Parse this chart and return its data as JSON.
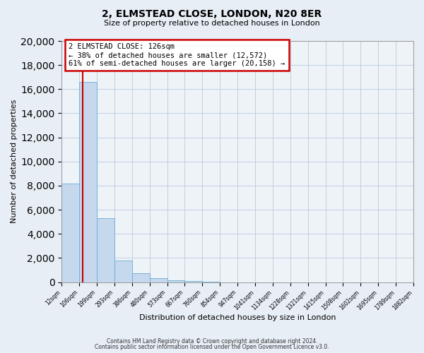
{
  "title": "2, ELMSTEAD CLOSE, LONDON, N20 8ER",
  "subtitle": "Size of property relative to detached houses in London",
  "xlabel": "Distribution of detached houses by size in London",
  "ylabel": "Number of detached properties",
  "bar_values": [
    8200,
    16600,
    5300,
    1800,
    750,
    300,
    150,
    100,
    50,
    0,
    0,
    0,
    0,
    0,
    0,
    0,
    0,
    0,
    0,
    0
  ],
  "bar_labels": [
    "12sqm",
    "106sqm",
    "199sqm",
    "293sqm",
    "386sqm",
    "480sqm",
    "573sqm",
    "667sqm",
    "760sqm",
    "854sqm",
    "947sqm",
    "1041sqm",
    "1134sqm",
    "1228sqm",
    "1321sqm",
    "1415sqm",
    "1508sqm",
    "1602sqm",
    "1695sqm",
    "1789sqm",
    "1882sqm"
  ],
  "bar_color": "#c5d8ed",
  "bar_edgecolor": "#6aaed6",
  "vline_x_index": 1.18,
  "vline_color": "#cc0000",
  "annotation_title": "2 ELMSTEAD CLOSE: 126sqm",
  "annotation_line1": "← 38% of detached houses are smaller (12,572)",
  "annotation_line2": "61% of semi-detached houses are larger (20,158) →",
  "annotation_box_color": "#ffffff",
  "annotation_box_edgecolor": "#cc0000",
  "ylim": [
    0,
    20000
  ],
  "yticks": [
    0,
    2000,
    4000,
    6000,
    8000,
    10000,
    12000,
    14000,
    16000,
    18000,
    20000
  ],
  "footer_line1": "Contains HM Land Registry data © Crown copyright and database right 2024.",
  "footer_line2": "Contains public sector information licensed under the Open Government Licence v3.0.",
  "bg_color": "#e8eef5",
  "plot_bg_color": "#eef3f8",
  "grid_color": "#c0cfe0"
}
